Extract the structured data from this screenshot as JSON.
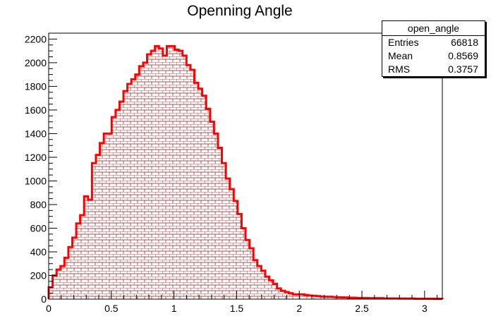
{
  "chart_data": {
    "type": "bar",
    "title": "Openning Angle",
    "xlabel": "",
    "ylabel": "",
    "xlim": [
      0,
      3.1416
    ],
    "ylim": [
      0,
      2250
    ],
    "x_ticks": [
      "0",
      "0.5",
      "1",
      "1.5",
      "2",
      "2.5",
      "3"
    ],
    "y_ticks": [
      "0",
      "200",
      "400",
      "600",
      "800",
      "1000",
      "1200",
      "1400",
      "1600",
      "1800",
      "2000",
      "2200"
    ],
    "bin_width": 0.031416,
    "values": [
      100,
      200,
      250,
      280,
      350,
      440,
      520,
      640,
      710,
      870,
      840,
      1150,
      1220,
      1320,
      1400,
      1400,
      1540,
      1600,
      1670,
      1760,
      1820,
      1860,
      1900,
      1970,
      2000,
      2070,
      2100,
      2140,
      2120,
      2060,
      2140,
      2140,
      2110,
      2100,
      2060,
      1980,
      1940,
      1830,
      1780,
      1720,
      1610,
      1500,
      1400,
      1280,
      1150,
      1020,
      930,
      830,
      720,
      600,
      500,
      430,
      330,
      280,
      240,
      190,
      160,
      130,
      90,
      70,
      60,
      50,
      40,
      40,
      40,
      35,
      30,
      28,
      25,
      22,
      20,
      20,
      18,
      16,
      15,
      14,
      12,
      12,
      10,
      10,
      10,
      8,
      8,
      8,
      8,
      6,
      6,
      6,
      6,
      5,
      5,
      5,
      5,
      4,
      4,
      4,
      4,
      4,
      3,
      3
    ],
    "line_color": "#ff0000",
    "fill_pattern": "bricks",
    "fill_pattern_color": "#8a1a1a",
    "grid": false,
    "legend": "none"
  },
  "stats": {
    "name": "open_angle",
    "entries_label": "Entries",
    "entries_value": "66818",
    "mean_label": "Mean",
    "mean_value": "0.8569",
    "rms_label": "RMS",
    "rms_value": "0.3757"
  }
}
